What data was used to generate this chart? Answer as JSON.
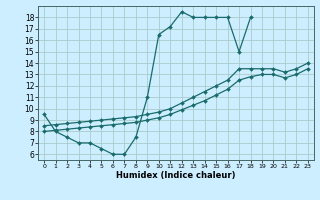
{
  "title": "",
  "xlabel": "Humidex (Indice chaleur)",
  "bg_color": "#cceeff",
  "grid_color": "#aacccc",
  "line_color": "#1a6b6b",
  "xlim": [
    -0.5,
    23.5
  ],
  "ylim": [
    5.5,
    19.0
  ],
  "xticks": [
    0,
    1,
    2,
    3,
    4,
    5,
    6,
    7,
    8,
    9,
    10,
    11,
    12,
    13,
    14,
    15,
    16,
    17,
    18,
    19,
    20,
    21,
    22,
    23
  ],
  "yticks": [
    6,
    7,
    8,
    9,
    10,
    11,
    12,
    13,
    14,
    15,
    16,
    17,
    18
  ],
  "curve1_x": [
    0,
    1,
    2,
    3,
    4,
    5,
    6,
    7,
    8,
    9,
    10,
    11,
    12,
    13,
    14,
    15,
    16,
    17,
    18
  ],
  "curve1_y": [
    9.5,
    8.0,
    7.5,
    7.0,
    7.0,
    6.5,
    6.0,
    6.0,
    7.5,
    11.0,
    16.5,
    17.2,
    18.5,
    18.0,
    18.0,
    18.0,
    18.0,
    15.0,
    18.0
  ],
  "curve2_x": [
    0,
    1,
    2,
    3,
    4,
    5,
    6,
    7,
    8,
    9,
    10,
    11,
    12,
    13,
    14,
    15,
    16,
    17,
    18,
    19,
    20,
    21,
    22,
    23
  ],
  "curve2_y": [
    8.5,
    8.6,
    8.7,
    8.8,
    8.9,
    9.0,
    9.1,
    9.2,
    9.3,
    9.5,
    9.7,
    10.0,
    10.5,
    11.0,
    11.5,
    12.0,
    12.5,
    13.5,
    13.5,
    13.5,
    13.5,
    13.2,
    13.5,
    14.0
  ],
  "curve3_x": [
    0,
    1,
    2,
    3,
    4,
    5,
    6,
    7,
    8,
    9,
    10,
    11,
    12,
    13,
    14,
    15,
    16,
    17,
    18,
    19,
    20,
    21,
    22,
    23
  ],
  "curve3_y": [
    8.0,
    8.1,
    8.2,
    8.3,
    8.4,
    8.5,
    8.6,
    8.7,
    8.8,
    9.0,
    9.2,
    9.5,
    9.9,
    10.3,
    10.7,
    11.2,
    11.7,
    12.5,
    12.8,
    13.0,
    13.0,
    12.7,
    13.0,
    13.5
  ]
}
